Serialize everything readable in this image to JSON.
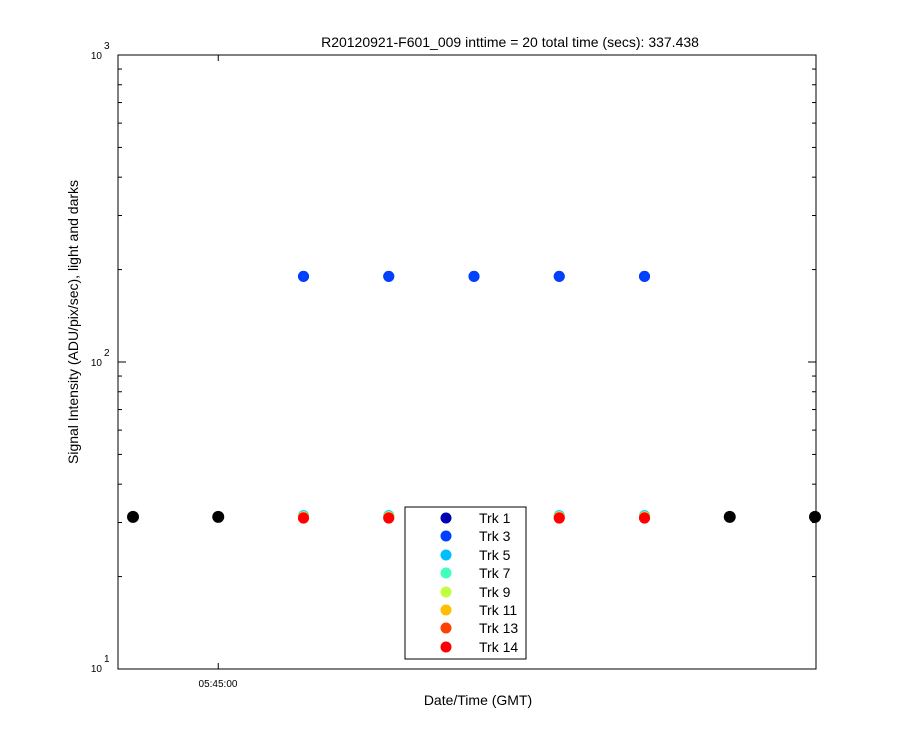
{
  "chart_data": {
    "type": "scatter",
    "title": "R20120921-F601_009 inttime = 20 total time (secs): 337.438",
    "xlabel": "Date/Time (GMT)",
    "ylabel": "Signal Intensity (ADU/pix/sec), light and darks",
    "yscale": "log",
    "ylim": [
      10,
      1000
    ],
    "y_ticks": [
      {
        "base": "10",
        "exp": "1",
        "value": 10
      },
      {
        "base": "10",
        "exp": "2",
        "value": 100
      },
      {
        "base": "10",
        "exp": "3",
        "value": 1000
      }
    ],
    "x_ticks": [
      {
        "label": "05:45:00",
        "index": 1
      }
    ],
    "x_points": 9,
    "grid": false,
    "legend_position": "bottom-center",
    "series": [
      {
        "name": "Trk 1",
        "color": "#0000b3",
        "x": [
          2,
          3,
          4,
          5,
          6
        ],
        "values": [
          190,
          190,
          190,
          190,
          190
        ]
      },
      {
        "name": "Trk 3",
        "color": "#0040ff",
        "x": [
          2,
          3,
          4,
          5,
          6
        ],
        "values": [
          190,
          190,
          190,
          190,
          190
        ]
      },
      {
        "name": "Trk 5",
        "color": "#00bfff",
        "x": [
          2,
          3,
          4,
          5,
          6
        ],
        "values": [
          31.6,
          31.6,
          31.6,
          31.6,
          31.6
        ]
      },
      {
        "name": "Trk 7",
        "color": "#40ffbf",
        "x": [
          2,
          3,
          4,
          5,
          6
        ],
        "values": [
          31.4,
          31.4,
          31.4,
          31.4,
          31.4
        ]
      },
      {
        "name": "Trk 9",
        "color": "#bfff40",
        "x": [
          2,
          3,
          4,
          5,
          6
        ],
        "values": [
          31.3,
          31.3,
          31.3,
          31.3,
          31.3
        ]
      },
      {
        "name": "Trk 11",
        "color": "#ffbf00",
        "x": [
          2,
          3,
          4,
          5,
          6
        ],
        "values": [
          31.2,
          31.2,
          31.2,
          31.2,
          31.2
        ]
      },
      {
        "name": "Trk 13",
        "color": "#ff4000",
        "x": [
          2,
          3,
          4,
          5,
          6
        ],
        "values": [
          31.1,
          31.1,
          31.1,
          31.1,
          31.1
        ]
      },
      {
        "name": "Trk 14",
        "color": "#ff0000",
        "x": [
          2,
          3,
          4,
          5,
          6
        ],
        "values": [
          31.0,
          31.0,
          31.0,
          31.0,
          31.0
        ]
      }
    ],
    "dark_series": {
      "color": "#000000",
      "x": [
        0,
        1,
        7,
        8
      ],
      "values": [
        31.3,
        31.3,
        31.3,
        31.3
      ]
    }
  }
}
